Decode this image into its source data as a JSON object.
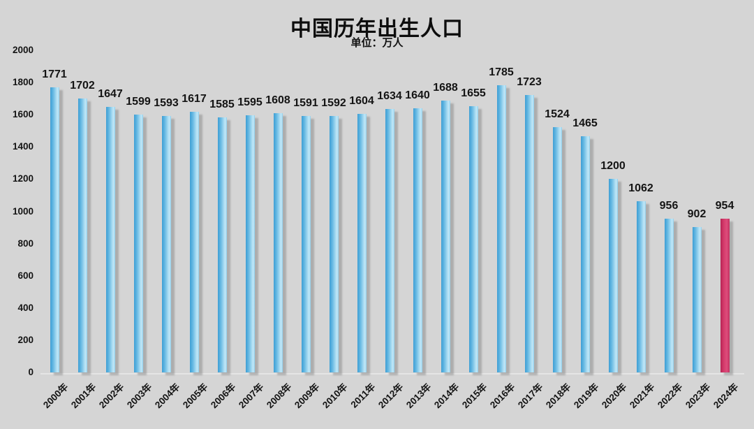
{
  "header": {
    "title": "中国历年出生人口",
    "subtitle": "单位：万人"
  },
  "chart_data": {
    "type": "bar",
    "title": "中国历年出生人口",
    "unit_label": "单位：万人",
    "categories": [
      "2000年",
      "2001年",
      "2002年",
      "2003年",
      "2004年",
      "2005年",
      "2006年",
      "2007年",
      "2008年",
      "2009年",
      "2010年",
      "2011年",
      "2012年",
      "2013年",
      "2014年",
      "2015年",
      "2016年",
      "2017年",
      "2018年",
      "2019年",
      "2020年",
      "2021年",
      "2022年",
      "2023年",
      "2024年"
    ],
    "values": [
      1771,
      1702,
      1647,
      1599,
      1593,
      1617,
      1585,
      1595,
      1608,
      1591,
      1592,
      1604,
      1634,
      1640,
      1688,
      1655,
      1785,
      1723,
      1524,
      1465,
      1200,
      1062,
      956,
      902,
      954
    ],
    "highlight_index": 24,
    "xlabel": "",
    "ylabel": "",
    "ylim": [
      0,
      2000
    ],
    "yticks": [
      0,
      200,
      400,
      600,
      800,
      1000,
      1200,
      1400,
      1600,
      1800,
      2000
    ],
    "grid": false,
    "legend": "none",
    "colors": {
      "bar_blue": "#5bb5e2",
      "bar_blue_light": "#aadcf2",
      "bar_highlight_pink": "#d43a6a",
      "background": "#d5d5d5",
      "text": "#141414",
      "shadow": "#8a8a8a"
    }
  }
}
